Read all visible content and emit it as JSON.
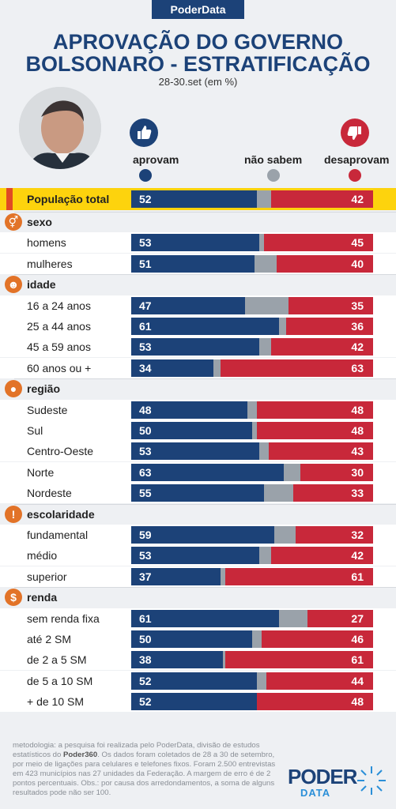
{
  "header": {
    "brand": "PoderData",
    "title_line1": "APROVAÇÃO DO GOVERNO",
    "title_line2": "BOLSONARO - ESTRATIFICAÇÃO",
    "subtitle": "28-30.set (em %)"
  },
  "colors": {
    "approve": "#1c4278",
    "unknown": "#9aa2aa",
    "disapprove": "#c8283a",
    "accent": "#e27328",
    "highlight": "#fdd30d"
  },
  "legend": {
    "approve": "aprovam",
    "unknown": "não sabem",
    "disapprove": "desaprovam"
  },
  "chart_data": {
    "type": "bar",
    "stacked": true,
    "orientation": "horizontal",
    "series_names": [
      "aprovam",
      "não sabem",
      "desaprovam"
    ],
    "total": {
      "label": "População total",
      "approve": 52,
      "disapprove": 42
    },
    "groups": [
      {
        "name": "sexo",
        "icon": "gender-icon",
        "rows": [
          {
            "label": "homens",
            "approve": 53,
            "disapprove": 45
          },
          {
            "label": "mulheres",
            "approve": 51,
            "disapprove": 40
          }
        ]
      },
      {
        "name": "idade",
        "icon": "person-icon",
        "rows": [
          {
            "label": "16 a 24 anos",
            "approve": 47,
            "disapprove": 35
          },
          {
            "label": "25 a 44 anos",
            "approve": 61,
            "disapprove": 36
          },
          {
            "label": "45 a 59 anos",
            "approve": 53,
            "disapprove": 42
          },
          {
            "label": "60 anos ou +",
            "approve": 34,
            "disapprove": 63
          }
        ]
      },
      {
        "name": "região",
        "icon": "brazil-map-icon",
        "rows": [
          {
            "label": "Sudeste",
            "approve": 48,
            "disapprove": 48
          },
          {
            "label": "Sul",
            "approve": 50,
            "disapprove": 48
          },
          {
            "label": "Centro-Oeste",
            "approve": 53,
            "disapprove": 43
          },
          {
            "label": "Norte",
            "approve": 63,
            "disapprove": 30
          },
          {
            "label": "Nordeste",
            "approve": 55,
            "disapprove": 33
          }
        ]
      },
      {
        "name": "escolaridade",
        "icon": "exclamation-icon",
        "rows": [
          {
            "label": "fundamental",
            "approve": 59,
            "disapprove": 32
          },
          {
            "label": "médio",
            "approve": 53,
            "disapprove": 42
          },
          {
            "label": "superior",
            "approve": 37,
            "disapprove": 61
          }
        ]
      },
      {
        "name": "renda",
        "icon": "dollar-icon",
        "rows": [
          {
            "label": "sem renda fixa",
            "approve": 61,
            "disapprove": 27
          },
          {
            "label": "até 2 SM",
            "approve": 50,
            "disapprove": 46
          },
          {
            "label": "de 2 a 5 SM",
            "approve": 38,
            "disapprove": 61
          },
          {
            "label": "de 5 a 10 SM",
            "approve": 52,
            "disapprove": 44
          },
          {
            "label": "+ de 10 SM",
            "approve": 52,
            "disapprove": 48
          }
        ]
      }
    ]
  },
  "footer": {
    "text_a": "metodologia: a pesquisa foi realizada pelo PoderData, divisão de estudos estatísticos do ",
    "text_bold": "Poder360",
    "text_b": ". Os dados foram coletados de 28 a 30 de setembro, por meio de ligações para celulares e telefones fixos. Foram 2.500 entrevistas em 423 municípios nas 27 unidades da Federação. A margem de erro é de 2 pontos percentuais. Obs.: por causa dos arredondamentos, a soma de alguns resultados pode não ser 100.",
    "logo_top": "PODER",
    "logo_bottom": "DATA"
  }
}
